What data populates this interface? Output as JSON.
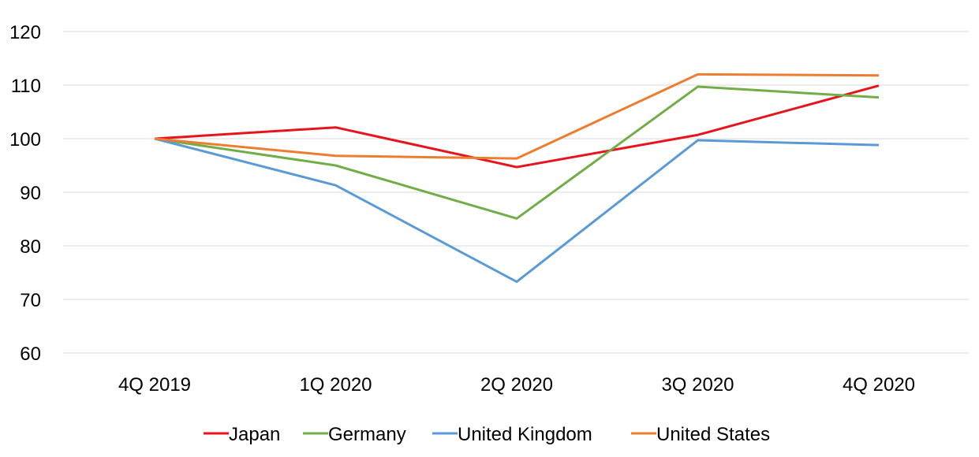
{
  "chart_data": {
    "type": "line",
    "title": "",
    "xlabel": "",
    "ylabel": "",
    "categories": [
      "4Q 2019",
      "1Q 2020",
      "2Q 2020",
      "3Q 2020",
      "4Q 2020"
    ],
    "ylim": [
      60,
      120
    ],
    "yticks": [
      60,
      70,
      80,
      90,
      100,
      110,
      120
    ],
    "grid": true,
    "legend_position": "bottom",
    "series": [
      {
        "name": "Japan",
        "color": "#e8141b",
        "values": [
          100,
          102.1,
          94.7,
          100.7,
          109.9
        ]
      },
      {
        "name": "Germany",
        "color": "#72ad47",
        "values": [
          100,
          95.0,
          85.1,
          109.7,
          107.7
        ]
      },
      {
        "name": "United Kingdom",
        "color": "#5b9bd5",
        "values": [
          100,
          91.3,
          73.3,
          99.7,
          98.8
        ]
      },
      {
        "name": "United States",
        "color": "#ed7d31",
        "values": [
          100,
          96.8,
          96.3,
          112.0,
          111.8
        ]
      }
    ]
  }
}
